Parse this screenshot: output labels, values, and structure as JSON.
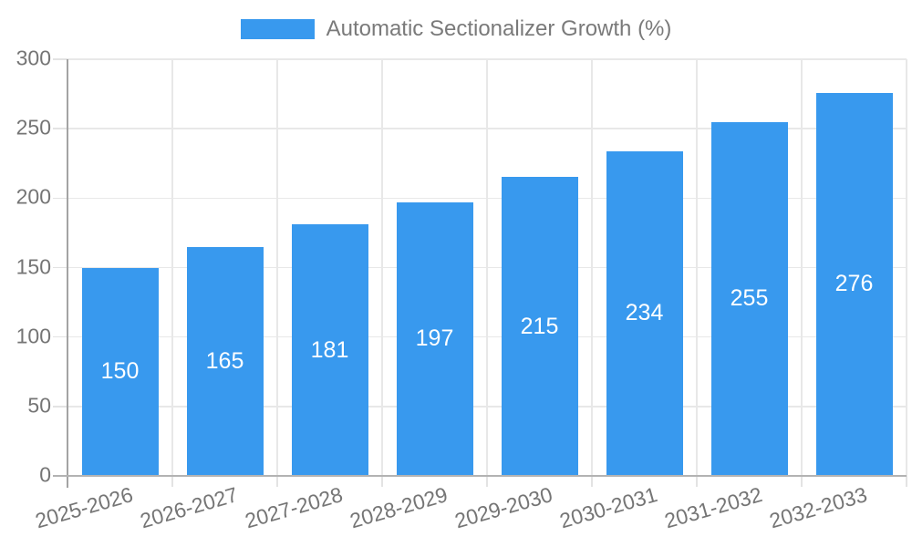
{
  "legend": {
    "label": "Automatic Sectionalizer Growth (%)"
  },
  "colors": {
    "bar": "#3899EE",
    "grid": "#e8e8e8",
    "axis_line": "#a3a3a3",
    "baseline": "#b3b3b3",
    "tick_text": "#757575",
    "legend_text": "#7a7a7a",
    "value_label_text": "#ffffff"
  },
  "chart_data": {
    "type": "bar",
    "title": "Automatic Sectionalizer Growth (%)",
    "categories": [
      "2025-2026",
      "2026-2027",
      "2027-2028",
      "2028-2029",
      "2029-2030",
      "2030-2031",
      "2031-2032",
      "2032-2033"
    ],
    "series": [
      {
        "name": "Automatic Sectionalizer Growth (%)",
        "values": [
          150,
          165,
          181,
          197,
          215,
          234,
          255,
          276
        ]
      }
    ],
    "value_labels": [
      150,
      165,
      181,
      197,
      215,
      234,
      255,
      276
    ],
    "value_label_position": "inside-center",
    "xlabel": "",
    "ylabel": "",
    "ylim": [
      0,
      300
    ],
    "yticks": [
      0,
      50,
      100,
      150,
      200,
      250,
      300
    ],
    "grid": "horizontal and vertical, light gray",
    "legend_position": "top-center",
    "x_tick_rotation_deg": -16
  }
}
